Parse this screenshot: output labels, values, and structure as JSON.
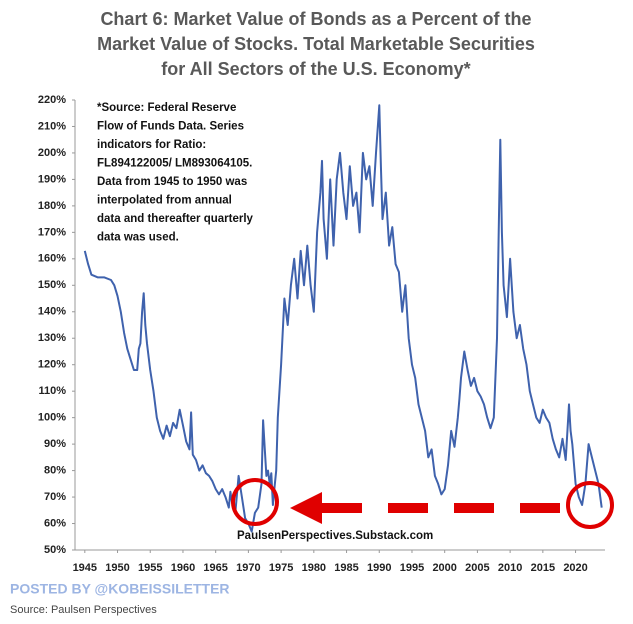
{
  "chart_data": {
    "type": "line",
    "title": [
      "Chart 6: Market Value of Bonds as a Percent of the",
      "Market Value of Stocks.  Total Marketable Securities",
      "for All Sectors of the U.S. Economy*"
    ],
    "annotation": [
      "*Source: Federal Reserve",
      "Flow of Funds Data.  Series",
      "indicators for Ratio:",
      "FL894122005/ LM893064105.",
      "Data from 1945 to 1950 was",
      "interpolated from annual",
      "data and thereafter quarterly",
      "data was used."
    ],
    "watermark": "PaulsenPerspectives.Substack.com",
    "posted_by": "POSTED BY @KOBEISSILETTER",
    "source": "Source: Paulsen Perspectives",
    "color": "#3f62ad",
    "x": [
      1945,
      1945.5,
      1946,
      1947,
      1948,
      1949,
      1949.5,
      1950,
      1950.5,
      1951,
      1951.5,
      1952,
      1952.5,
      1953,
      1953.25,
      1953.5,
      1953.75,
      1954,
      1954.25,
      1954.5,
      1955,
      1955.5,
      1956,
      1956.5,
      1957,
      1957.5,
      1958,
      1958.5,
      1959,
      1959.5,
      1960,
      1960.5,
      1961,
      1961.25,
      1961.5,
      1962,
      1962.5,
      1963,
      1963.5,
      1964,
      1964.5,
      1965,
      1965.5,
      1966,
      1966.5,
      1967,
      1967.25,
      1967.5,
      1968,
      1968.5,
      1969,
      1969.5,
      1970,
      1970.5,
      1971,
      1971.5,
      1972,
      1972.25,
      1972.5,
      1972.75,
      1973,
      1973.25,
      1973.5,
      1973.75,
      1974,
      1974.25,
      1974.5,
      1975,
      1975.5,
      1976,
      1976.5,
      1977,
      1977.5,
      1978,
      1978.5,
      1979,
      1979.5,
      1980,
      1980.5,
      1981,
      1981.25,
      1981.5,
      1982,
      1982.5,
      1983,
      1983.5,
      1984,
      1984.5,
      1985,
      1985.5,
      1986,
      1986.5,
      1987,
      1987.5,
      1988,
      1988.5,
      1989,
      1989.5,
      1990,
      1990.25,
      1990.5,
      1991,
      1991.5,
      1992,
      1992.5,
      1993,
      1993.5,
      1994,
      1994.5,
      1995,
      1995.5,
      1996,
      1996.5,
      1997,
      1997.5,
      1998,
      1998.5,
      1999,
      1999.5,
      2000,
      2000.5,
      2001,
      2001.5,
      2002,
      2002.25,
      2002.5,
      2003,
      2003.5,
      2004,
      2004.5,
      2005,
      2005.5,
      2006,
      2006.5,
      2007,
      2007.5,
      2008,
      2008.25,
      2008.5,
      2008.75,
      2009,
      2009.5,
      2010,
      2010.5,
      2011,
      2011.5,
      2012,
      2012.5,
      2013,
      2013.5,
      2014,
      2014.5,
      2015,
      2015.5,
      2016,
      2016.5,
      2017,
      2017.5,
      2018,
      2018.5,
      2019,
      2019.25,
      2019.5,
      2020,
      2020.5,
      2021,
      2021.5,
      2022,
      2022.5,
      2023,
      2023.5,
      2024
    ],
    "values": [
      163,
      158,
      154,
      153,
      153,
      152,
      150,
      146,
      140,
      132,
      126,
      122,
      118,
      118,
      126,
      128,
      140,
      147,
      135,
      128,
      118,
      110,
      100,
      95,
      92,
      97,
      93,
      98,
      96,
      103,
      97,
      91,
      88,
      102,
      86,
      84,
      80,
      82,
      79,
      78,
      76,
      73,
      71,
      73,
      70,
      66,
      72,
      68,
      64,
      78,
      70,
      62,
      60,
      57,
      64,
      66,
      75,
      99,
      88,
      78,
      80,
      75,
      79,
      67,
      74,
      80,
      100,
      120,
      145,
      135,
      150,
      160,
      145,
      163,
      150,
      165,
      150,
      140,
      170,
      185,
      197,
      175,
      160,
      190,
      165,
      190,
      200,
      185,
      175,
      195,
      180,
      185,
      170,
      200,
      190,
      195,
      180,
      200,
      218,
      195,
      175,
      185,
      165,
      172,
      158,
      155,
      140,
      150,
      130,
      120,
      115,
      105,
      100,
      95,
      85,
      88,
      78,
      75,
      71,
      73,
      82,
      95,
      89,
      100,
      107,
      115,
      125,
      118,
      112,
      115,
      110,
      108,
      105,
      100,
      96,
      100,
      130,
      170,
      205,
      170,
      150,
      138,
      160,
      140,
      130,
      135,
      126,
      120,
      110,
      105,
      100,
      98,
      103,
      100,
      98,
      92,
      88,
      85,
      92,
      84,
      105,
      95,
      90,
      75,
      70,
      67,
      75,
      90,
      85,
      80,
      75,
      66
    ],
    "xlim": [
      1943.5,
      2024.5
    ],
    "xticks": [
      1945,
      1950,
      1955,
      1960,
      1965,
      1970,
      1975,
      1980,
      1985,
      1990,
      1995,
      2000,
      2005,
      2010,
      2015,
      2020
    ],
    "ylim": [
      50,
      220
    ],
    "yticks": [
      {
        "value": 50,
        "label": "50%"
      },
      {
        "value": 60,
        "label": "60%"
      },
      {
        "value": 70,
        "label": "70%"
      },
      {
        "value": 80,
        "label": "80%"
      },
      {
        "value": 90,
        "label": "90%"
      },
      {
        "value": 100,
        "label": "100%"
      },
      {
        "value": 110,
        "label": "110%"
      },
      {
        "value": 120,
        "label": "120%"
      },
      {
        "value": 130,
        "label": "130%"
      },
      {
        "value": 140,
        "label": "140%"
      },
      {
        "value": 150,
        "label": "150%"
      },
      {
        "value": 160,
        "label": "160%"
      },
      {
        "value": 170,
        "label": "170%"
      },
      {
        "value": 180,
        "label": "180%"
      },
      {
        "value": 190,
        "label": "190%"
      },
      {
        "value": 200,
        "label": "200%"
      },
      {
        "value": 210,
        "label": "210%"
      },
      {
        "value": 220,
        "label": "220%"
      }
    ]
  }
}
